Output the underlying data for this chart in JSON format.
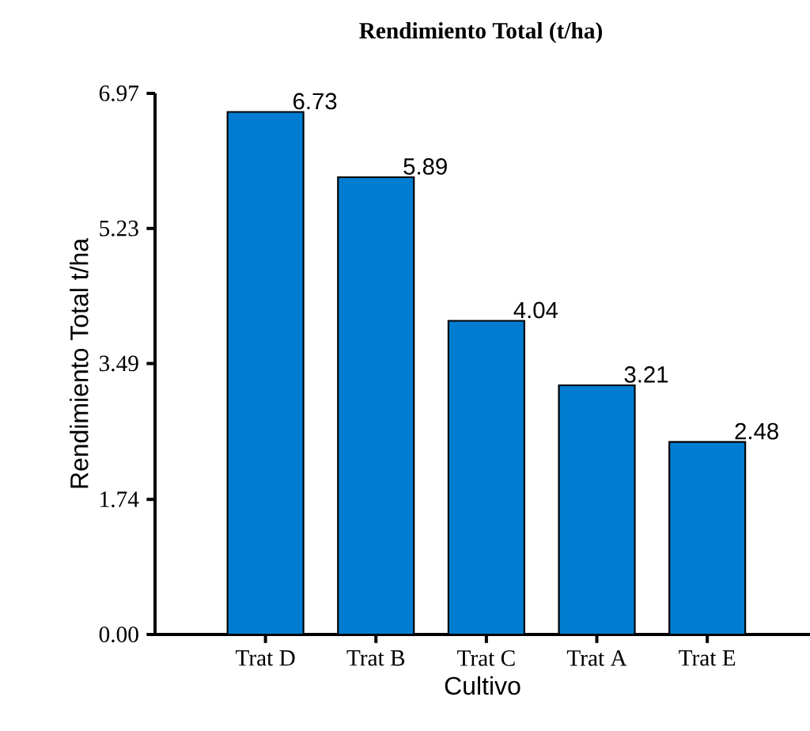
{
  "chart_data": {
    "type": "bar",
    "title": "Rendimiento Total (t/ha)",
    "xlabel": "Cultivo",
    "ylabel": "Rendimiento Total t/ha",
    "categories": [
      "Trat D",
      "Trat B",
      "Trat C",
      "Trat A",
      "Trat E"
    ],
    "values": [
      6.73,
      5.89,
      4.04,
      3.21,
      2.48
    ],
    "color": "#007dd0",
    "ylim": [
      0,
      6.97
    ],
    "yticks": [
      {
        "value": 0,
        "label": "0.00"
      },
      1.74,
      3.49,
      5.23,
      6.97
    ],
    "data_labels": true
  }
}
